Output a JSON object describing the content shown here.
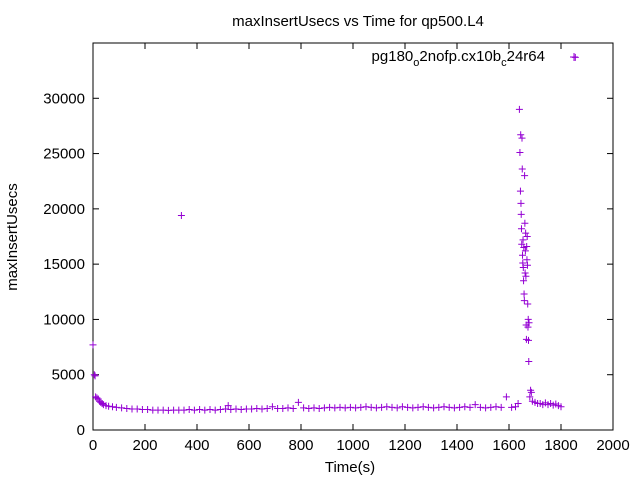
{
  "chart_data": {
    "type": "scatter",
    "title": "maxInsertUsecs vs Time for qp500.L4",
    "xlabel": "Time(s)",
    "ylabel": "maxInsertUsecs",
    "xlim": [
      0,
      2000
    ],
    "ylim": [
      0,
      35000
    ],
    "xticks": [
      0,
      200,
      400,
      600,
      800,
      1000,
      1200,
      1400,
      1600,
      1800,
      2000
    ],
    "yticks": [
      0,
      5000,
      10000,
      15000,
      20000,
      25000,
      30000
    ],
    "grid": false,
    "legend_position": "top-right",
    "series": [
      {
        "name_parts": [
          "pg180",
          "o",
          "2nofp.cx10b",
          "c",
          "24r64"
        ],
        "color": "#9400d3",
        "marker": "plus",
        "points": [
          [
            0,
            7700
          ],
          [
            5,
            5000
          ],
          [
            8,
            4900
          ],
          [
            10,
            3000
          ],
          [
            15,
            2900
          ],
          [
            20,
            2800
          ],
          [
            25,
            2600
          ],
          [
            30,
            2500
          ],
          [
            35,
            2400
          ],
          [
            40,
            2300
          ],
          [
            50,
            2200
          ],
          [
            60,
            2150
          ],
          [
            75,
            2100
          ],
          [
            90,
            2050
          ],
          [
            110,
            2000
          ],
          [
            130,
            1950
          ],
          [
            150,
            1900
          ],
          [
            170,
            1900
          ],
          [
            190,
            1850
          ],
          [
            210,
            1850
          ],
          [
            230,
            1800
          ],
          [
            250,
            1800
          ],
          [
            270,
            1800
          ],
          [
            290,
            1780
          ],
          [
            310,
            1800
          ],
          [
            330,
            1800
          ],
          [
            340,
            19400
          ],
          [
            350,
            1800
          ],
          [
            370,
            1850
          ],
          [
            390,
            1800
          ],
          [
            410,
            1850
          ],
          [
            430,
            1800
          ],
          [
            450,
            1850
          ],
          [
            470,
            1800
          ],
          [
            490,
            1850
          ],
          [
            510,
            1900
          ],
          [
            520,
            2200
          ],
          [
            530,
            1850
          ],
          [
            550,
            1900
          ],
          [
            570,
            1850
          ],
          [
            590,
            1900
          ],
          [
            610,
            1900
          ],
          [
            630,
            1950
          ],
          [
            650,
            1900
          ],
          [
            670,
            1950
          ],
          [
            690,
            2100
          ],
          [
            710,
            1950
          ],
          [
            730,
            1950
          ],
          [
            750,
            2000
          ],
          [
            770,
            1950
          ],
          [
            790,
            2500
          ],
          [
            810,
            2000
          ],
          [
            830,
            1950
          ],
          [
            850,
            2000
          ],
          [
            870,
            1950
          ],
          [
            890,
            2000
          ],
          [
            910,
            2050
          ],
          [
            930,
            2000
          ],
          [
            950,
            2050
          ],
          [
            970,
            2000
          ],
          [
            990,
            2050
          ],
          [
            1010,
            2000
          ],
          [
            1030,
            2050
          ],
          [
            1050,
            2100
          ],
          [
            1070,
            2050
          ],
          [
            1090,
            2000
          ],
          [
            1110,
            2050
          ],
          [
            1130,
            2100
          ],
          [
            1150,
            2050
          ],
          [
            1170,
            2000
          ],
          [
            1190,
            2100
          ],
          [
            1210,
            2050
          ],
          [
            1230,
            2000
          ],
          [
            1250,
            2050
          ],
          [
            1270,
            2100
          ],
          [
            1290,
            2050
          ],
          [
            1310,
            2000
          ],
          [
            1330,
            2050
          ],
          [
            1350,
            2100
          ],
          [
            1370,
            2050
          ],
          [
            1390,
            2000
          ],
          [
            1410,
            2050
          ],
          [
            1430,
            2100
          ],
          [
            1450,
            2050
          ],
          [
            1470,
            2300
          ],
          [
            1490,
            2050
          ],
          [
            1510,
            2000
          ],
          [
            1530,
            2050
          ],
          [
            1550,
            2100
          ],
          [
            1570,
            2050
          ],
          [
            1590,
            3000
          ],
          [
            1610,
            2050
          ],
          [
            1625,
            2100
          ],
          [
            1635,
            2400
          ],
          [
            1640,
            29000
          ],
          [
            1642,
            25100
          ],
          [
            1644,
            21600
          ],
          [
            1645,
            26700
          ],
          [
            1646,
            20500
          ],
          [
            1647,
            19500
          ],
          [
            1648,
            18200
          ],
          [
            1649,
            16800
          ],
          [
            1650,
            26400
          ],
          [
            1651,
            23600
          ],
          [
            1652,
            15800
          ],
          [
            1653,
            15100
          ],
          [
            1654,
            17200
          ],
          [
            1655,
            14700
          ],
          [
            1656,
            13500
          ],
          [
            1657,
            16500
          ],
          [
            1658,
            12300
          ],
          [
            1659,
            11700
          ],
          [
            1660,
            23000
          ],
          [
            1661,
            18700
          ],
          [
            1662,
            14200
          ],
          [
            1663,
            16200
          ],
          [
            1664,
            17800
          ],
          [
            1665,
            13900
          ],
          [
            1666,
            9500
          ],
          [
            1667,
            8200
          ],
          [
            1668,
            16600
          ],
          [
            1669,
            15400
          ],
          [
            1670,
            17500
          ],
          [
            1671,
            14900
          ],
          [
            1672,
            11400
          ],
          [
            1673,
            9300
          ],
          [
            1674,
            10000
          ],
          [
            1675,
            8100
          ],
          [
            1676,
            6200
          ],
          [
            1677,
            9700
          ],
          [
            1680,
            3000
          ],
          [
            1683,
            3600
          ],
          [
            1686,
            3400
          ],
          [
            1690,
            2600
          ],
          [
            1700,
            2500
          ],
          [
            1710,
            2400
          ],
          [
            1720,
            2400
          ],
          [
            1730,
            2300
          ],
          [
            1740,
            2450
          ],
          [
            1750,
            2300
          ],
          [
            1760,
            2400
          ],
          [
            1770,
            2250
          ],
          [
            1780,
            2350
          ],
          [
            1790,
            2200
          ],
          [
            1800,
            2100
          ],
          [
            1855,
            33700
          ]
        ]
      }
    ]
  }
}
